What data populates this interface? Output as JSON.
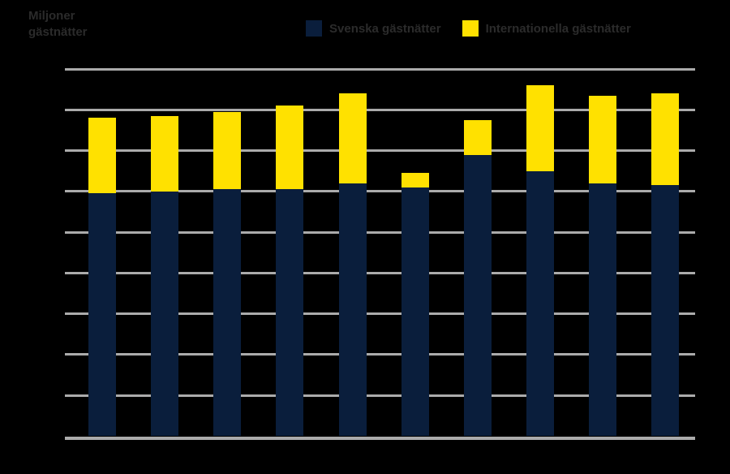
{
  "chart": {
    "y_axis_title": "Miljoner\ngästnätter",
    "background_color": "#000000",
    "text_color": "#2B2B2B",
    "gridline_color": "#ABABAB"
  },
  "legend": {
    "items": [
      {
        "label": "Svenska gästnätter",
        "color": "#0A1E3C"
      },
      {
        "label": "Internationella gästnätter",
        "color": "#FFE100"
      }
    ]
  },
  "chart_data": {
    "type": "bar",
    "stacked": true,
    "title": "",
    "xlabel": "",
    "ylabel": "Miljoner gästnätter",
    "categories": [
      "",
      "",
      "",
      "",
      "",
      "",
      "",
      "",
      "",
      ""
    ],
    "x_tick_labels_visible": false,
    "y_tick_labels_visible": false,
    "unit_note": "axis gridlines are unlabeled; values measured in gridline intervals above the baseline",
    "ylim": [
      0,
      9
    ],
    "gridline_count": 10,
    "grid": "horizontal",
    "legend_position": "top-center",
    "series": [
      {
        "name": "Svenska gästnätter",
        "color": "#0A1E3C",
        "values": [
          5.95,
          6.0,
          6.05,
          6.05,
          6.2,
          6.1,
          6.9,
          6.5,
          6.2,
          6.15
        ]
      },
      {
        "name": "Internationella gästnätter",
        "color": "#FFE100",
        "values": [
          1.85,
          1.85,
          1.9,
          2.05,
          2.2,
          0.35,
          0.85,
          2.1,
          2.15,
          2.25
        ]
      }
    ]
  }
}
